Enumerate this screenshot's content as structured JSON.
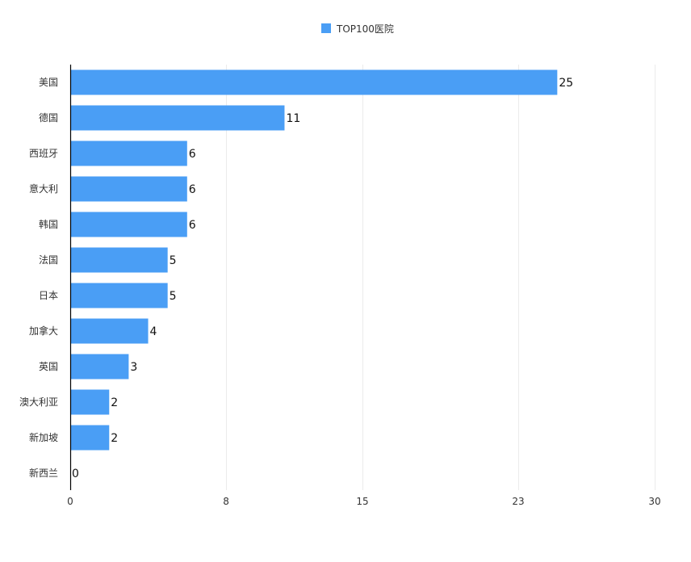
{
  "chart_data": {
    "type": "bar",
    "orientation": "horizontal",
    "categories": [
      "美国",
      "德国",
      "西班牙",
      "意大利",
      "韩国",
      "法国",
      "日本",
      "加拿大",
      "英国",
      "澳大利亚",
      "新加坡",
      "新西兰"
    ],
    "series": [
      {
        "name": "TOP100医院",
        "values": [
          25,
          11,
          6,
          6,
          6,
          5,
          5,
          4,
          3,
          2,
          2,
          0
        ],
        "color": "#4a9ef5"
      }
    ],
    "x_ticks": [
      0,
      8,
      15,
      23,
      30
    ],
    "xlim": [
      0,
      30
    ],
    "grid": "vertical",
    "legend_position": "top-center",
    "data_labels": true
  }
}
